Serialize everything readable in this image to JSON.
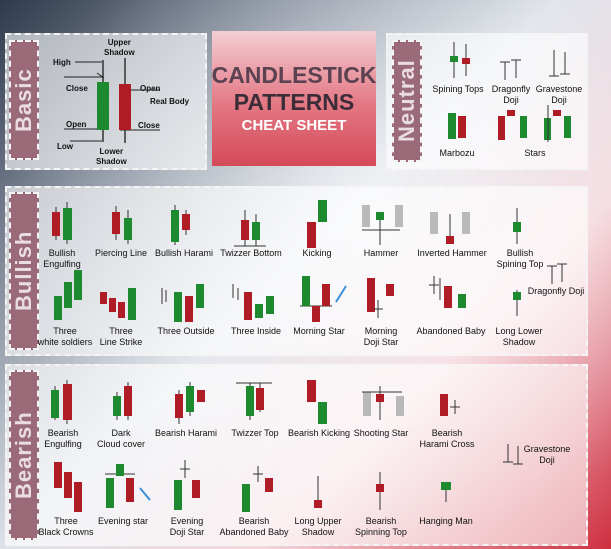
{
  "title": {
    "line1": "CANDLESTICK",
    "line2": "PATTERNS",
    "line3": "CHEAT SHEET"
  },
  "sections": {
    "basic": "Basic",
    "neutral": "Neutral",
    "bullish": "Bullish",
    "bearish": "Bearish"
  },
  "basic_labels": {
    "high": "High",
    "upper_shadow": "Upper\nShadow",
    "close_left": "Close",
    "open_right": "Open",
    "real_body": "Real Body",
    "open_left": "Open",
    "close_right": "Close",
    "low": "Low",
    "lower_shadow": "Lower\nShadow"
  },
  "neutral_patterns": [
    "Spining Tops",
    "Dragonfly\nDoji",
    "Gravestone\nDoji",
    "Marbozu",
    "Stars"
  ],
  "bullish_patterns": [
    "Bullish\nEngulfing",
    "Piercing Line",
    "Bullish Harami",
    "Twizzer Bottom",
    "Kicking",
    "Hammer",
    "Inverted Hammer",
    "Bullish\nSpining Top",
    "Dragonfly Doji",
    "Three\nwhite soldiers",
    "Three\nLine Strike",
    "Three Outside",
    "Three Inside",
    "Morning Star",
    "Morning\nDoji Star",
    "Abandoned Baby",
    "Long Lower\nShadow"
  ],
  "bearish_patterns": [
    "Bearish\nEngulfing",
    "Dark\nCloud cover",
    "Bearish Harami",
    "Twizzer Top",
    "Bearish Kicking",
    "Shooting Star",
    "Bearish\nHarami Cross",
    "Gravestone\nDoji",
    "Three\nBlack Crowns",
    "Evening star",
    "Evening\nDoji Star",
    "Bearish\nAbandoned Baby",
    "Long Upper\nShadow",
    "Bearish\nSpinning Top",
    "Hanging Man"
  ],
  "colors": {
    "bull": "#1e8a2f",
    "bear": "#b01c26",
    "gray": "#b9b9b9",
    "tab": "#9a6a78"
  }
}
